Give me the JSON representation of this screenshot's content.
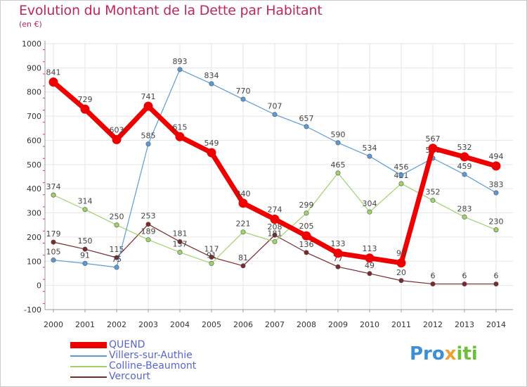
{
  "title": "Evolution du Montant de la Dette par Habitant",
  "subtitle": "(en €)",
  "logo": {
    "p1": "Pro",
    "p2": "x",
    "p3": "iti"
  },
  "colors": {
    "frame": "#cccccc",
    "grid": "#e6e6e6",
    "axis_text": "#333333",
    "label_text": "#444444"
  },
  "chart_data": {
    "type": "line",
    "x": [
      "2000",
      "2001",
      "2002",
      "2003",
      "2004",
      "2005",
      "2006",
      "2007",
      "2008",
      "2009",
      "2010",
      "2011",
      "2012",
      "2013",
      "2014"
    ],
    "ylim": [
      -100,
      1000
    ],
    "yticks": [
      "-100",
      "0",
      "100",
      "200",
      "300",
      "400",
      "500",
      "600",
      "700",
      "800",
      "900",
      "1000"
    ],
    "grid": true,
    "legend_position": "bottom-left",
    "series": [
      {
        "name": "Vercourt",
        "color": "#7a2a2a",
        "width": 1.2,
        "values": [
          179,
          150,
          115,
          253,
          181,
          117,
          81,
          208,
          136,
          77,
          49,
          20,
          6,
          6,
          6
        ],
        "labels": [
          "179",
          "150",
          "115",
          "253",
          "181",
          "117",
          "81",
          "208",
          "136",
          "77",
          "49",
          "20",
          "6",
          "6",
          "6"
        ]
      },
      {
        "name": "Colline-Beaumont",
        "color": "#9ed36a",
        "width": 1.2,
        "values": [
          374,
          314,
          250,
          189,
          137,
          91,
          221,
          181,
          299,
          465,
          304,
          421,
          352,
          283,
          230
        ],
        "labels": [
          "374",
          "314",
          "250",
          "189",
          "137",
          "91",
          "221",
          "181",
          "299",
          "465",
          "304",
          "421",
          "352",
          "283",
          "230"
        ]
      },
      {
        "name": "Villers-sur-Authie",
        "color": "#5b9bd5",
        "width": 1.2,
        "values": [
          105,
          91,
          75,
          585,
          893,
          834,
          770,
          707,
          657,
          590,
          534,
          456,
          526,
          459,
          383
        ],
        "labels": [
          "105",
          "91",
          "75",
          "585",
          "893",
          "834",
          "770",
          "707",
          "657",
          "590",
          "534",
          "456",
          "526",
          "459",
          "383"
        ]
      },
      {
        "name": "QUEND",
        "color": "#ee0000",
        "width": 7,
        "values": [
          841,
          729,
          603,
          741,
          615,
          549,
          340,
          274,
          205,
          133,
          113,
          93,
          567,
          532,
          494
        ],
        "labels": [
          "841",
          "729",
          "603",
          "741",
          "615",
          "549",
          "340",
          "274",
          "205",
          "133",
          "113",
          "93",
          "567",
          "532",
          "494"
        ]
      }
    ]
  }
}
